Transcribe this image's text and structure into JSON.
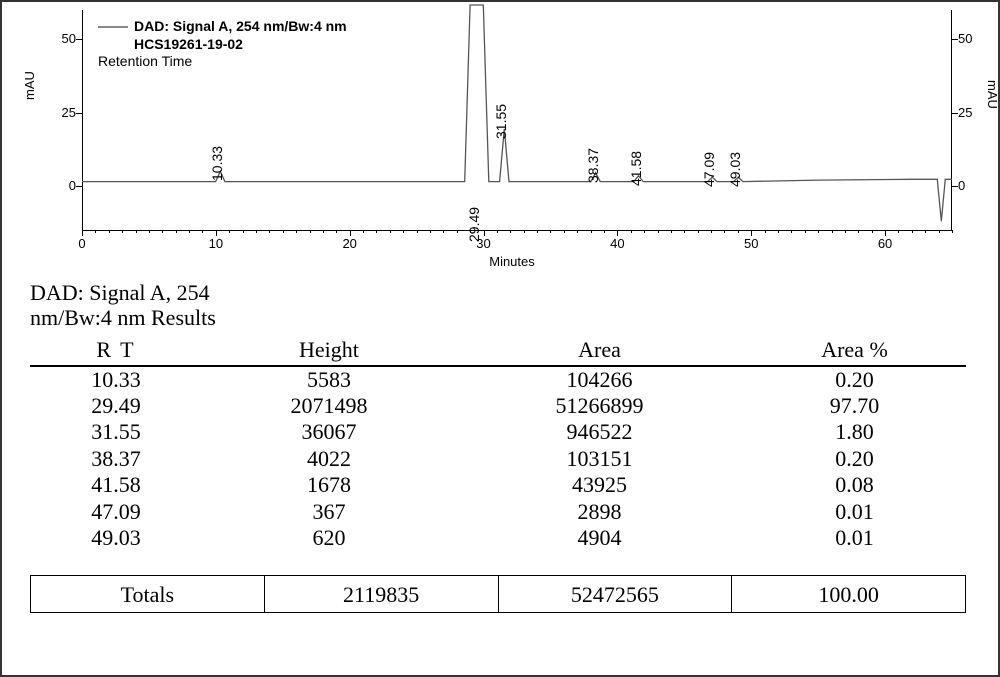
{
  "chart": {
    "type": "chromatogram",
    "legend": {
      "signal": "DAD: Signal A, 254 nm/Bw:4 nm",
      "sample": "HCS19261-19-02",
      "annotation": "Retention Time"
    },
    "y_axis": {
      "label": "mAU",
      "ticks": [
        0,
        25,
        50
      ],
      "min": -15,
      "max": 60
    },
    "y_axis_right": {
      "label": "mAU",
      "ticks": [
        0,
        25,
        50
      ]
    },
    "x_axis": {
      "label": "Minutes",
      "ticks": [
        0,
        10,
        20,
        30,
        40,
        50,
        60
      ],
      "min": 0,
      "max": 65
    },
    "trace_color": "#555555",
    "background": "#ffffff",
    "baseline_y": 1.5,
    "peaks": [
      {
        "rt": 10.33,
        "height_mAU": 3.5,
        "label": "10.33",
        "label_above": true
      },
      {
        "rt": 29.49,
        "height_mAU": 400,
        "label": "29.49",
        "label_above": false,
        "clipped": true
      },
      {
        "rt": 31.55,
        "height_mAU": 18,
        "label": "31.55",
        "label_above": true
      },
      {
        "rt": 38.37,
        "height_mAU": 3,
        "label": "38.37",
        "label_above": true
      },
      {
        "rt": 41.58,
        "height_mAU": 2,
        "label": "41.58",
        "label_above": true
      },
      {
        "rt": 47.09,
        "height_mAU": 1.5,
        "label": "47.09",
        "label_above": true
      },
      {
        "rt": 49.03,
        "height_mAU": 1.5,
        "label": "49.03",
        "label_above": true
      }
    ],
    "terminal_dip": {
      "rt": 64.2,
      "depth_mAU": -12
    }
  },
  "results": {
    "title_line1": "DAD: Signal A, 254",
    "title_line2": "nm/Bw:4 nm Results",
    "columns": [
      "R T",
      "Height",
      "Area",
      "Area %"
    ],
    "rows": [
      [
        "10.33",
        "5583",
        "104266",
        "0.20"
      ],
      [
        "29.49",
        "2071498",
        "51266899",
        "97.70"
      ],
      [
        "31.55",
        "36067",
        "946522",
        "1.80"
      ],
      [
        "38.37",
        "4022",
        "103151",
        "0.20"
      ],
      [
        "41.58",
        "1678",
        "43925",
        "0.08"
      ],
      [
        "47.09",
        "367",
        "2898",
        "0.01"
      ],
      [
        "49.03",
        "620",
        "4904",
        "0.01"
      ]
    ],
    "totals": {
      "label": "Totals",
      "height": "2119835",
      "area": "52472565",
      "area_pct": "100.00"
    }
  }
}
